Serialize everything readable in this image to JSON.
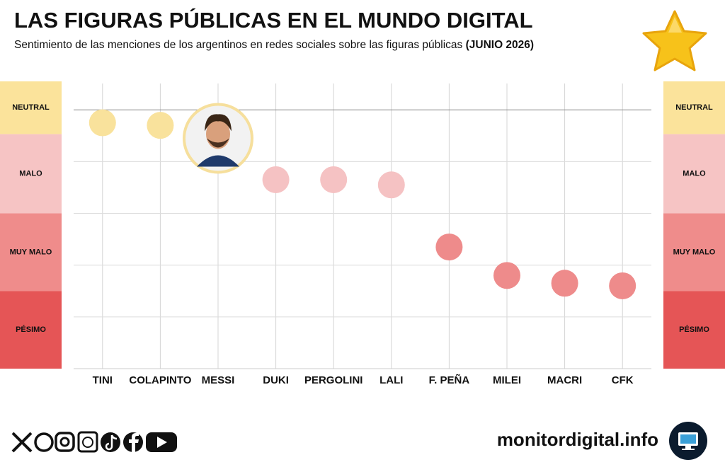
{
  "chart_data": {
    "type": "dot",
    "title": "LAS FIGURAS PÚBLICAS EN EL MUNDO DIGITAL",
    "subtitle": "Sentimiento de las menciones de los argentinos en redes sociales sobre las figuras públicas",
    "subtitle_date": "(JUNIO 2026)",
    "categories": [
      "TINI",
      "COLAPINTO",
      "MESSI",
      "DUKI",
      "PERGOLINI",
      "LALI",
      "F. PEÑA",
      "MILEI",
      "MACRI",
      "CFK"
    ],
    "values": [
      -0.25,
      -0.3,
      -0.55,
      -1.35,
      -1.35,
      -1.45,
      -2.65,
      -3.2,
      -3.35,
      -3.4
    ],
    "colors": [
      "#f9e29c",
      "#f9e29c",
      "#f6df9c",
      "#f5c2c3",
      "#f5c2c3",
      "#f5c2c3",
      "#ee8b8b",
      "#ee8b8b",
      "#ee8b8b",
      "#ee8b8b"
    ],
    "ylim": [
      -5,
      0.55
    ],
    "yticks": [
      0,
      -1,
      -2,
      -3,
      -4
    ],
    "bands": [
      {
        "label": "NEUTRAL",
        "from": -0.47,
        "to": 0.55,
        "color": "#fbe39b"
      },
      {
        "label": "MALO",
        "from": -2,
        "to": -0.47,
        "color": "#f6c4c4"
      },
      {
        "label": "MUY MALO",
        "from": -3.5,
        "to": -2,
        "color": "#ef8c8b"
      },
      {
        "label": "PÉSIMO",
        "from": -5,
        "to": -3.5,
        "color": "#e55556"
      }
    ]
  },
  "footer": {
    "site": "monitordigital.info"
  }
}
